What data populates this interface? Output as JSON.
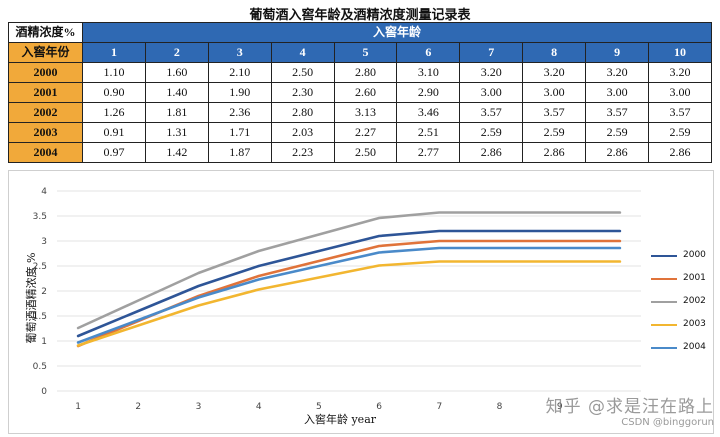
{
  "table": {
    "title": "葡萄酒入窖年龄及酒精浓度测量记录表",
    "corner_top": "酒精浓度%",
    "corner_bottom": "入窖年份",
    "group_header": "入窖年龄",
    "ages": [
      "1",
      "2",
      "3",
      "4",
      "5",
      "6",
      "7",
      "8",
      "9",
      "10"
    ],
    "rows": [
      {
        "year": "2000",
        "values": [
          "1.10",
          "1.60",
          "2.10",
          "2.50",
          "2.80",
          "3.10",
          "3.20",
          "3.20",
          "3.20",
          "3.20"
        ]
      },
      {
        "year": "2001",
        "values": [
          "0.90",
          "1.40",
          "1.90",
          "2.30",
          "2.60",
          "2.90",
          "3.00",
          "3.00",
          "3.00",
          "3.00"
        ]
      },
      {
        "year": "2002",
        "values": [
          "1.26",
          "1.81",
          "2.36",
          "2.80",
          "3.13",
          "3.46",
          "3.57",
          "3.57",
          "3.57",
          "3.57"
        ]
      },
      {
        "year": "2003",
        "values": [
          "0.91",
          "1.31",
          "1.71",
          "2.03",
          "2.27",
          "2.51",
          "2.59",
          "2.59",
          "2.59",
          "2.59"
        ]
      },
      {
        "year": "2004",
        "values": [
          "0.97",
          "1.42",
          "1.87",
          "2.23",
          "2.50",
          "2.77",
          "2.86",
          "2.86",
          "2.86",
          "2.86"
        ]
      }
    ]
  },
  "chart_data": {
    "type": "line",
    "x": [
      1,
      2,
      3,
      4,
      5,
      6,
      7,
      8,
      9,
      10
    ],
    "x_tick_labels": [
      "1",
      "2",
      "3",
      "4",
      "5",
      "6",
      "7",
      "8",
      "9"
    ],
    "xlabel": "入窖年龄 year",
    "ylabel": "葡萄酒酒精浓度 %",
    "ylim": [
      0,
      4
    ],
    "y_ticks": [
      0,
      0.5,
      1,
      1.5,
      2,
      2.5,
      3,
      3.5,
      4
    ],
    "y_tick_labels": [
      "0",
      "0.5",
      "1",
      "1.5",
      "2",
      "2.5",
      "3",
      "3.5",
      "4"
    ],
    "grid": true,
    "legend": "right",
    "series": [
      {
        "name": "2000",
        "color": "#2e5597",
        "values": [
          1.1,
          1.6,
          2.1,
          2.5,
          2.8,
          3.1,
          3.2,
          3.2,
          3.2,
          3.2
        ]
      },
      {
        "name": "2001",
        "color": "#e0733a",
        "values": [
          0.9,
          1.4,
          1.9,
          2.3,
          2.6,
          2.9,
          3.0,
          3.0,
          3.0,
          3.0
        ]
      },
      {
        "name": "2002",
        "color": "#a0a0a0",
        "values": [
          1.26,
          1.81,
          2.36,
          2.8,
          3.13,
          3.46,
          3.57,
          3.57,
          3.57,
          3.57
        ]
      },
      {
        "name": "2003",
        "color": "#f2b630",
        "values": [
          0.91,
          1.31,
          1.71,
          2.03,
          2.27,
          2.51,
          2.59,
          2.59,
          2.59,
          2.59
        ]
      },
      {
        "name": "2004",
        "color": "#4a8ac9",
        "values": [
          0.97,
          1.42,
          1.87,
          2.23,
          2.5,
          2.77,
          2.86,
          2.86,
          2.86,
          2.86
        ]
      }
    ]
  },
  "watermark": {
    "main": "知乎 @求是汪在路上",
    "sub": "CSDN @binggorun"
  }
}
